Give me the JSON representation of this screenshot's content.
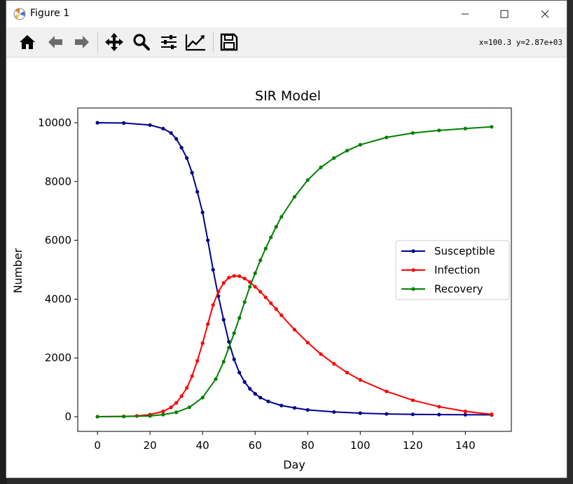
{
  "window": {
    "title": "Figure 1"
  },
  "toolbar": {
    "buttons": [
      "home-icon",
      "back-arrow-icon",
      "forward-arrow-icon",
      "pan-icon",
      "zoom-icon",
      "subplots-icon",
      "edit-axes-icon",
      "save-icon"
    ],
    "coords": "x=100.3  y=2.87e+03"
  },
  "chart_data": {
    "type": "line",
    "title": "SIR Model",
    "xlabel": "Day",
    "ylabel": "Number",
    "xlim": [
      -7.5,
      157.5
    ],
    "ylim": [
      -500,
      10500
    ],
    "xticks": [
      0,
      20,
      40,
      60,
      80,
      100,
      120,
      140
    ],
    "yticks": [
      0,
      2000,
      4000,
      6000,
      8000,
      10000
    ],
    "grid": false,
    "legend_position": "center-right",
    "marker": "circle",
    "series": [
      {
        "name": "Susceptible",
        "color": "#00008b",
        "x": [
          0,
          10,
          20,
          25,
          28,
          30,
          32,
          34,
          36,
          38,
          40,
          42,
          44,
          46,
          48,
          50,
          52,
          54,
          56,
          58,
          60,
          62,
          65,
          70,
          75,
          80,
          90,
          100,
          110,
          120,
          130,
          140,
          150
        ],
        "values": [
          9999,
          9990,
          9920,
          9800,
          9650,
          9450,
          9150,
          8800,
          8300,
          7650,
          6950,
          6000,
          5000,
          4100,
          3300,
          2550,
          1950,
          1500,
          1180,
          950,
          780,
          650,
          520,
          380,
          300,
          230,
          160,
          120,
          95,
          80,
          72,
          66,
          62
        ]
      },
      {
        "name": "Infection",
        "color": "#ff0000",
        "x": [
          0,
          10,
          15,
          20,
          25,
          28,
          30,
          32,
          34,
          36,
          38,
          40,
          42,
          44,
          46,
          48,
          50,
          52,
          54,
          56,
          58,
          60,
          62,
          64,
          66,
          68,
          70,
          75,
          80,
          85,
          90,
          95,
          100,
          110,
          120,
          130,
          140,
          150
        ],
        "values": [
          1,
          10,
          25,
          70,
          180,
          320,
          470,
          700,
          980,
          1380,
          1900,
          2500,
          3150,
          3800,
          4250,
          4550,
          4730,
          4790,
          4780,
          4700,
          4580,
          4420,
          4250,
          4060,
          3860,
          3660,
          3450,
          2960,
          2520,
          2130,
          1800,
          1500,
          1250,
          860,
          560,
          340,
          180,
          80
        ]
      },
      {
        "name": "Recovery",
        "color": "#008000",
        "x": [
          0,
          10,
          20,
          25,
          30,
          35,
          40,
          45,
          48,
          50,
          52,
          54,
          56,
          58,
          60,
          62,
          64,
          66,
          68,
          70,
          75,
          80,
          85,
          90,
          95,
          100,
          110,
          120,
          130,
          140,
          150
        ],
        "values": [
          0,
          5,
          25,
          70,
          150,
          320,
          650,
          1280,
          1870,
          2350,
          2840,
          3360,
          3900,
          4420,
          4880,
          5320,
          5720,
          6100,
          6460,
          6800,
          7480,
          8050,
          8480,
          8800,
          9050,
          9250,
          9500,
          9650,
          9740,
          9800,
          9860
        ]
      }
    ]
  }
}
